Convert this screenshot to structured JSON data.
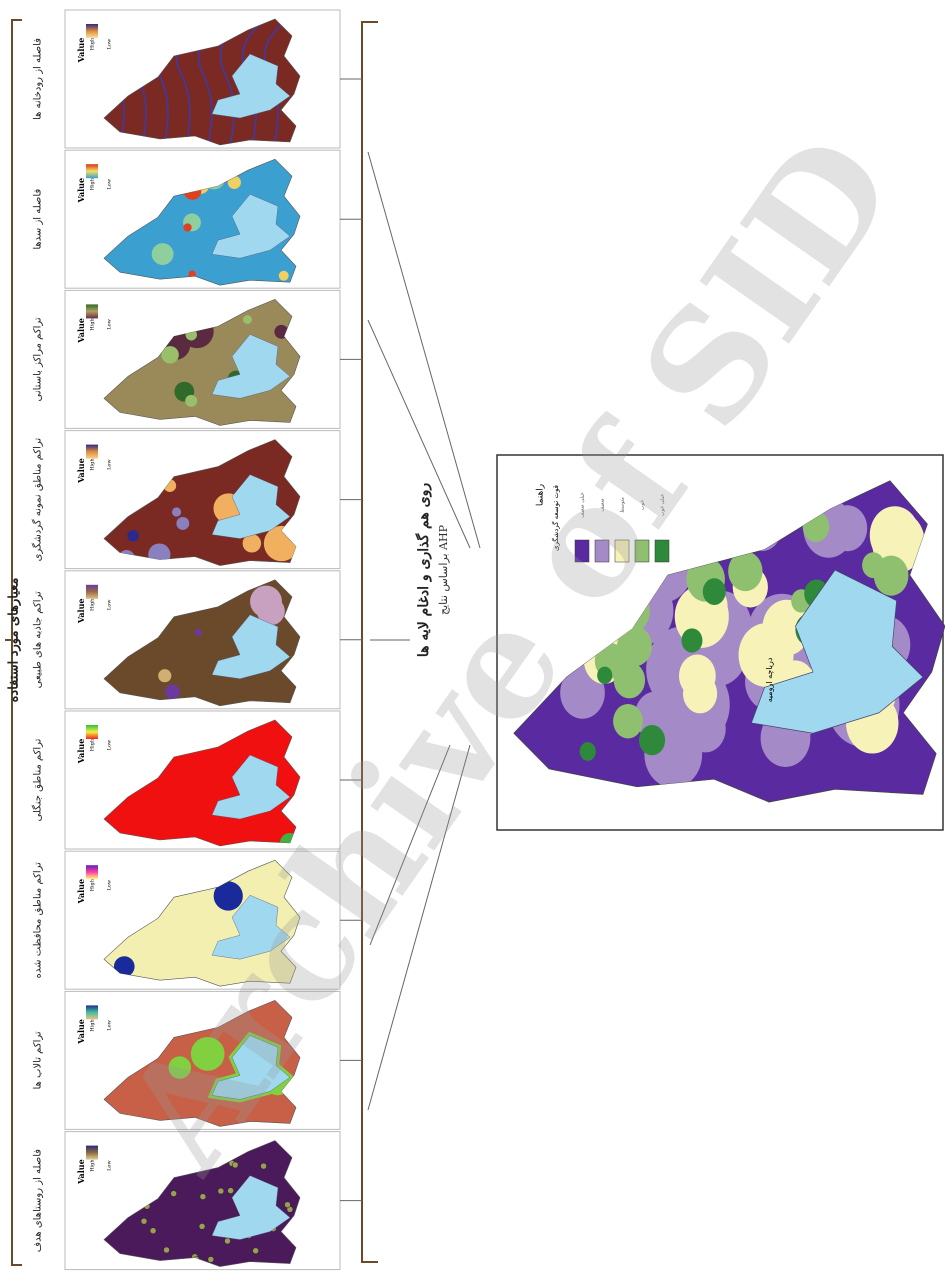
{
  "header": {
    "title": "معیارهای مورد استفاده"
  },
  "panels": [
    {
      "label": "فاصله از رودخانه ها"
    },
    {
      "label": "فاصله از سدها"
    },
    {
      "label": "تراکم مراکز باستانی"
    },
    {
      "label": "تراکم مناطق نمونه گردشگری"
    },
    {
      "label": "تراکم جاذبه های طبیعی"
    },
    {
      "label": "تراکم مناطق جنگلی"
    },
    {
      "label": "تراکم مناطق محافظت شده"
    },
    {
      "label": "تراکم تالاب ها"
    },
    {
      "label": "فاصله از روستاهای هدف"
    }
  ],
  "legend": {
    "title": "Value",
    "high": "High",
    "low": "Low"
  },
  "process": {
    "title": "روی هم گذاری و ادغام لایه ها",
    "subtitle": "براساس نتایج AHP"
  },
  "result_map": {
    "legend_title": "راهنما",
    "legend_subtitle": "قوت توسعه گردشگری",
    "classes": [
      "خیلی ضعیف",
      "ضعیف",
      "متوسط",
      "خوب",
      "خیلی خوب"
    ],
    "lake_label": "دریاچه ارومیه"
  },
  "watermark": "Archive of SID"
}
